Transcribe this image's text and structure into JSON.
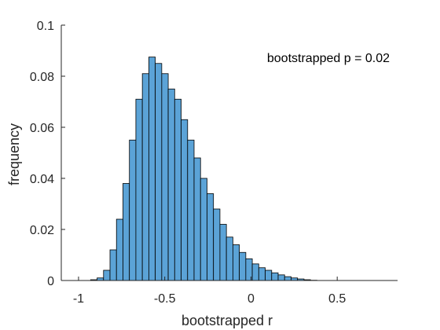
{
  "chart_data": {
    "type": "bar",
    "title": "",
    "xlabel": "bootstrapped r",
    "ylabel": "frequency",
    "xlim": [
      -1.1,
      0.85
    ],
    "ylim": [
      0,
      0.1
    ],
    "xticks": [
      -1,
      -0.5,
      0,
      0.5
    ],
    "xtick_labels": [
      "-1",
      "-0.5",
      "0",
      "0.5"
    ],
    "yticks": [
      0,
      0.02,
      0.04,
      0.06,
      0.08,
      0.1
    ],
    "ytick_labels": [
      "0",
      "0.02",
      "0.04",
      "0.06",
      "0.08",
      "0.1"
    ],
    "annotation": "bootstrapped p = 0.02",
    "bar_color": "#5ba3d7",
    "bin_width": 0.0375,
    "bin_start": -0.93,
    "values": [
      0.0003,
      0.001,
      0.004,
      0.012,
      0.024,
      0.038,
      0.055,
      0.071,
      0.081,
      0.0875,
      0.085,
      0.081,
      0.075,
      0.071,
      0.063,
      0.055,
      0.048,
      0.04,
      0.034,
      0.028,
      0.022,
      0.017,
      0.014,
      0.011,
      0.0085,
      0.0065,
      0.005,
      0.004,
      0.003,
      0.0022,
      0.0015,
      0.001,
      0.0006,
      0.0003,
      0.0001
    ]
  }
}
